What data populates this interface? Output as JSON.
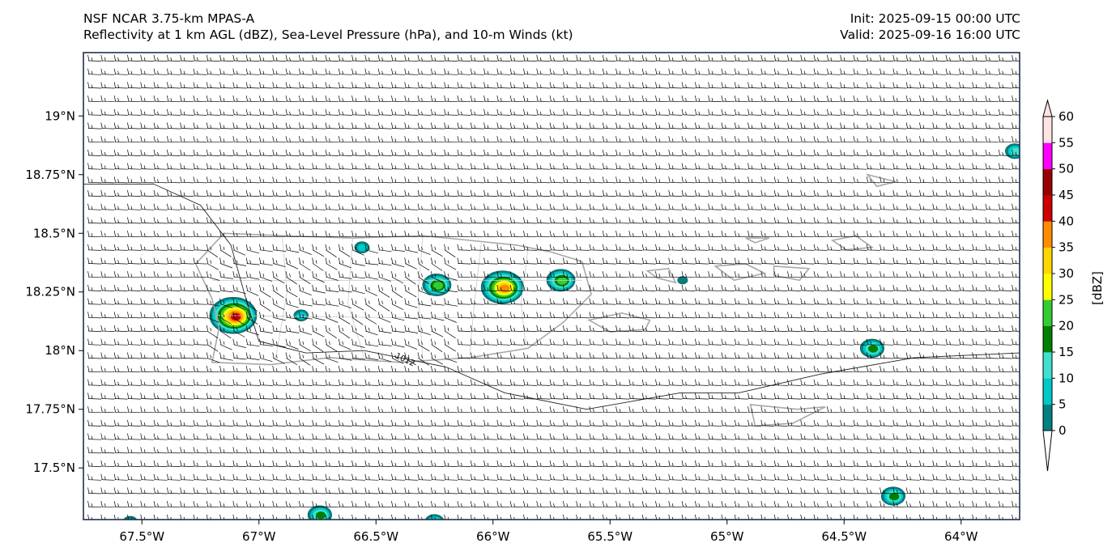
{
  "header": {
    "line1_left": "NSF NCAR 3.75-km MPAS-A",
    "line2_left": "Reflectivity at 1 km AGL (dBZ), Sea-Level Pressure (hPa), and 10-m Winds (kt)",
    "line1_right": "Init: 2025-09-15 00:00 UTC",
    "line2_right": "Valid: 2025-09-16 16:00 UTC"
  },
  "map": {
    "lon_range": [
      -67.75,
      -63.75
    ],
    "lat_range": [
      17.28,
      19.27
    ],
    "lat_ticks": [
      {
        "value": 19.0,
        "label": "19°N"
      },
      {
        "value": 18.75,
        "label": "18.75°N"
      },
      {
        "value": 18.5,
        "label": "18.5°N"
      },
      {
        "value": 18.25,
        "label": "18.25°N"
      },
      {
        "value": 18.0,
        "label": "18°N"
      },
      {
        "value": 17.75,
        "label": "17.75°N"
      },
      {
        "value": 17.5,
        "label": "17.5°N"
      }
    ],
    "lon_ticks": [
      {
        "value": -67.5,
        "label": "67.5°W"
      },
      {
        "value": -67.0,
        "label": "67°W"
      },
      {
        "value": -66.5,
        "label": "66.5°W"
      },
      {
        "value": -66.0,
        "label": "66°W"
      },
      {
        "value": -65.5,
        "label": "65.5°W"
      },
      {
        "value": -65.0,
        "label": "65°W"
      },
      {
        "value": -64.5,
        "label": "64.5°W"
      },
      {
        "value": -64.0,
        "label": "64°W"
      }
    ],
    "isobar_label": "1012",
    "coast_color": "#a8a8a8",
    "isobar_color": "#222222",
    "barb_color": "#000000"
  },
  "colorbar": {
    "label": "[dBZ]",
    "levels": [
      "0",
      "5",
      "10",
      "15",
      "20",
      "25",
      "30",
      "35",
      "40",
      "45",
      "50",
      "55",
      "60"
    ],
    "colors": [
      "#008080",
      "#00c8c8",
      "#40e0d0",
      "#008000",
      "#32cd32",
      "#ffff00",
      "#ffd700",
      "#ff8c00",
      "#cc0000",
      "#990000",
      "#ff00ff",
      "#ffe4e1"
    ]
  },
  "cells": [
    {
      "lon": -67.11,
      "lat": 18.15,
      "max": 9
    },
    {
      "lon": -65.96,
      "lat": 18.27,
      "max": 8
    },
    {
      "lon": -66.24,
      "lat": 18.28,
      "max": 5
    },
    {
      "lon": -65.71,
      "lat": 18.3,
      "max": 5
    },
    {
      "lon": -66.56,
      "lat": 18.44,
      "max": 2
    },
    {
      "lon": -66.82,
      "lat": 18.15,
      "max": 2
    },
    {
      "lon": -64.38,
      "lat": 18.01,
      "max": 4
    },
    {
      "lon": -66.74,
      "lat": 17.3,
      "max": 4
    },
    {
      "lon": -64.29,
      "lat": 17.38,
      "max": 4
    },
    {
      "lon": -63.77,
      "lat": 18.85,
      "max": 3
    },
    {
      "lon": -66.25,
      "lat": 17.27,
      "max": 3
    },
    {
      "lon": -67.55,
      "lat": 17.27,
      "max": 2
    },
    {
      "lon": -65.19,
      "lat": 18.3,
      "max": 1
    }
  ]
}
